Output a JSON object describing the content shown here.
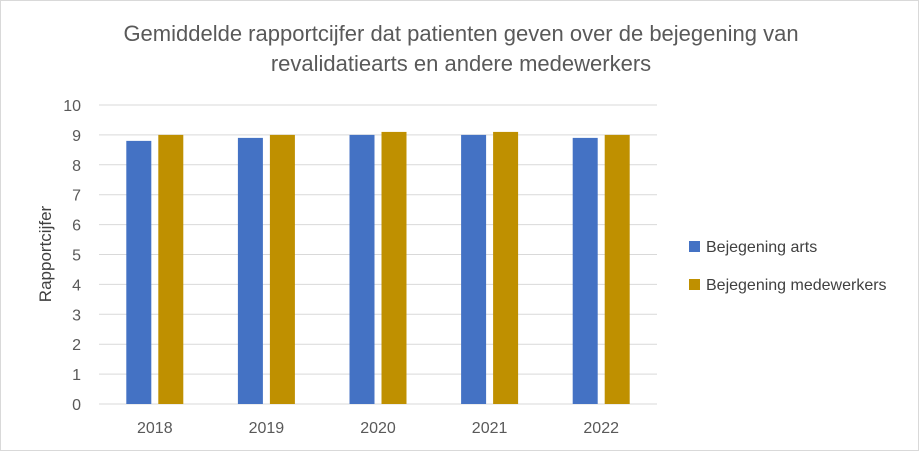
{
  "chart_data": {
    "type": "bar",
    "title_lines": [
      "Gemiddelde rapportcijfer dat patienten geven over de bejegening van",
      "revalidatiearts en andere medewerkers"
    ],
    "xlabel": "",
    "ylabel": "Rapportcijfer",
    "categories": [
      "2018",
      "2019",
      "2020",
      "2021",
      "2022"
    ],
    "ylim": [
      0,
      10
    ],
    "yticks": [
      "0",
      "1",
      "2",
      "3",
      "4",
      "5",
      "6",
      "7",
      "8",
      "9",
      "10"
    ],
    "grid": true,
    "legend_position": "right",
    "series": [
      {
        "name": "Bejegening arts",
        "color": "#4472c4",
        "values": [
          8.8,
          8.9,
          9.0,
          9.0,
          8.9
        ]
      },
      {
        "name": "Bejegening medewerkers",
        "color": "#bf9000",
        "values": [
          9.0,
          9.0,
          9.1,
          9.1,
          9.0
        ]
      }
    ]
  }
}
